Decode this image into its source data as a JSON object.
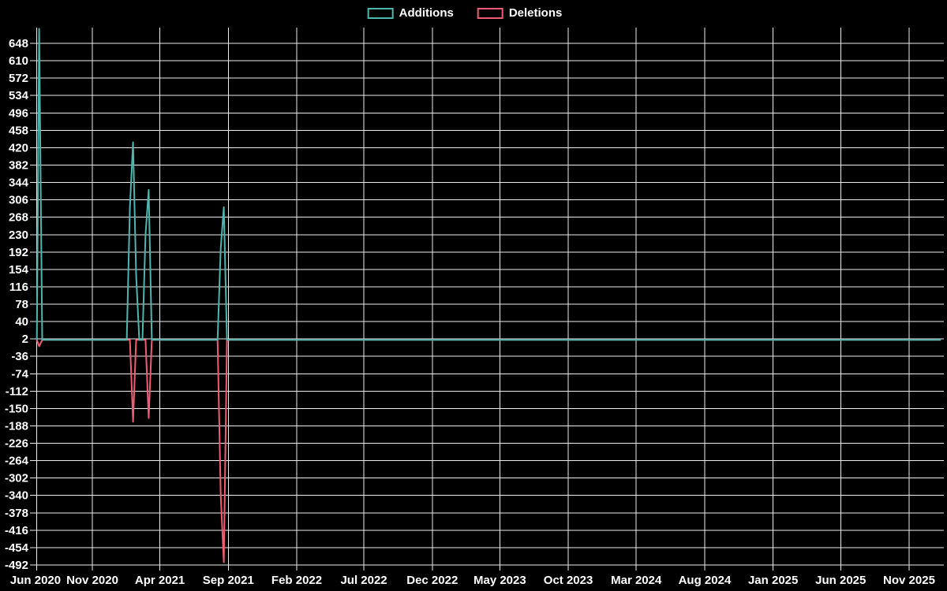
{
  "legend": {
    "items": [
      {
        "label": "Additions",
        "color": "#4db6ae"
      },
      {
        "label": "Deletions",
        "color": "#f05c74"
      }
    ]
  },
  "chart_data": {
    "type": "line",
    "title": "",
    "background": "#000000",
    "grid": true,
    "grid_color": "#ececec",
    "text_color": "#ffffff",
    "legend_position": "top-center",
    "baseline": 0,
    "week_start": "2020-06-28",
    "x_axis": {
      "tick_labels": [
        "Jun 2020",
        "Nov 2020",
        "Apr 2021",
        "Sep 2021",
        "Feb 2022",
        "Jul 2022",
        "Dec 2022",
        "May 2023",
        "Oct 2023",
        "Mar 2024",
        "Aug 2024",
        "Jan 2025",
        "Jun 2025",
        "Nov 2025"
      ],
      "tick_dates": [
        "2020-06-01",
        "2020-11-01",
        "2021-04-01",
        "2021-09-01",
        "2022-02-01",
        "2022-07-01",
        "2022-12-01",
        "2023-05-01",
        "2023-10-01",
        "2024-03-01",
        "2024-08-01",
        "2025-01-01",
        "2025-06-01",
        "2025-11-01"
      ]
    },
    "y_axis": {
      "ticks": [
        648,
        610,
        572,
        534,
        496,
        458,
        420,
        382,
        344,
        306,
        268,
        230,
        192,
        154,
        116,
        78,
        40,
        2,
        -36,
        -74,
        -112,
        -150,
        -188,
        -226,
        -264,
        -302,
        -340,
        -378,
        -416,
        -454,
        -492
      ],
      "min": -492,
      "max": 682
    },
    "series": [
      {
        "name": "Additions",
        "color": "#4db6ae",
        "weekly_nonzero": {
          "2020-07-05": 680,
          "2021-01-24": 290,
          "2021-01-31": 432,
          "2021-02-07": 142,
          "2021-02-28": 230,
          "2021-03-07": 328,
          "2021-08-15": 200,
          "2021-08-22": 290
        }
      },
      {
        "name": "Deletions",
        "color": "#f05c74",
        "weekly_nonzero": {
          "2020-07-05": -14,
          "2021-01-31": -179,
          "2021-03-07": -171,
          "2021-08-15": -340,
          "2021-08-22": -486
        }
      }
    ]
  }
}
